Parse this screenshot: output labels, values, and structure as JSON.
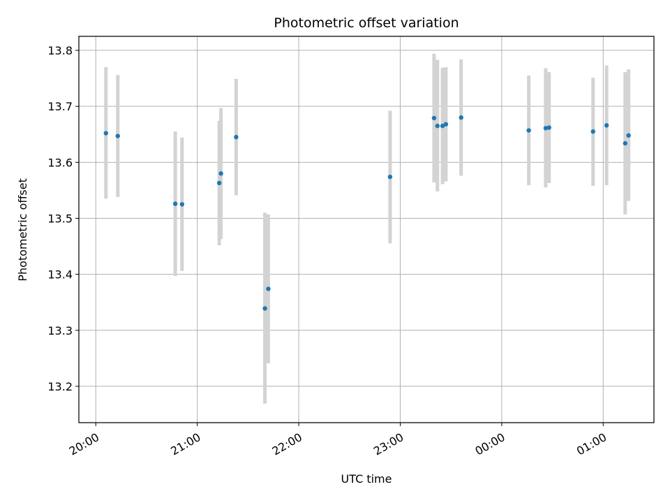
{
  "chart_data": {
    "type": "scatter",
    "title": "Photometric offset variation",
    "xlabel": "UTC time",
    "ylabel": "Photometric offset",
    "x_axis": {
      "kind": "time",
      "range": [
        "19:50",
        "01:30"
      ],
      "ticks": [
        "20:00",
        "21:00",
        "22:00",
        "23:00",
        "00:00",
        "01:00"
      ]
    },
    "y_axis": {
      "range": [
        13.135,
        13.825
      ],
      "ticks": [
        "13.2",
        "13.3",
        "13.4",
        "13.5",
        "13.6",
        "13.7",
        "13.8"
      ]
    },
    "grid": true,
    "colors": {
      "marker": "#1f77b4",
      "errorbar": "#d3d3d3",
      "grid": "#b0b0b0"
    },
    "points": [
      {
        "x": "20:06",
        "y": 13.652,
        "ylow": 13.535,
        "yhigh": 13.77
      },
      {
        "x": "20:13",
        "y": 13.647,
        "ylow": 13.538,
        "yhigh": 13.756
      },
      {
        "x": "20:47",
        "y": 13.526,
        "ylow": 13.397,
        "yhigh": 13.655
      },
      {
        "x": "20:51",
        "y": 13.525,
        "ylow": 13.406,
        "yhigh": 13.644
      },
      {
        "x": "21:13",
        "y": 13.563,
        "ylow": 13.452,
        "yhigh": 13.674
      },
      {
        "x": "21:14",
        "y": 13.58,
        "ylow": 13.463,
        "yhigh": 13.697
      },
      {
        "x": "21:23",
        "y": 13.645,
        "ylow": 13.541,
        "yhigh": 13.749
      },
      {
        "x": "21:40",
        "y": 13.339,
        "ylow": 13.169,
        "yhigh": 13.51
      },
      {
        "x": "21:42",
        "y": 13.374,
        "ylow": 13.241,
        "yhigh": 13.507
      },
      {
        "x": "22:54",
        "y": 13.574,
        "ylow": 13.455,
        "yhigh": 13.692
      },
      {
        "x": "23:20",
        "y": 13.679,
        "ylow": 13.564,
        "yhigh": 13.794
      },
      {
        "x": "23:22",
        "y": 13.665,
        "ylow": 13.548,
        "yhigh": 13.783
      },
      {
        "x": "23:25",
        "y": 13.665,
        "ylow": 13.561,
        "yhigh": 13.769
      },
      {
        "x": "23:27",
        "y": 13.668,
        "ylow": 13.566,
        "yhigh": 13.77
      },
      {
        "x": "23:36",
        "y": 13.68,
        "ylow": 13.576,
        "yhigh": 13.784
      },
      {
        "x": "00:16",
        "y": 13.657,
        "ylow": 13.559,
        "yhigh": 13.755
      },
      {
        "x": "00:26",
        "y": 13.661,
        "ylow": 13.555,
        "yhigh": 13.768
      },
      {
        "x": "00:28",
        "y": 13.662,
        "ylow": 13.563,
        "yhigh": 13.761
      },
      {
        "x": "00:54",
        "y": 13.655,
        "ylow": 13.558,
        "yhigh": 13.751
      },
      {
        "x": "01:02",
        "y": 13.666,
        "ylow": 13.559,
        "yhigh": 13.773
      },
      {
        "x": "01:13",
        "y": 13.634,
        "ylow": 13.507,
        "yhigh": 13.761
      },
      {
        "x": "01:15",
        "y": 13.648,
        "ylow": 13.531,
        "yhigh": 13.766
      }
    ]
  }
}
